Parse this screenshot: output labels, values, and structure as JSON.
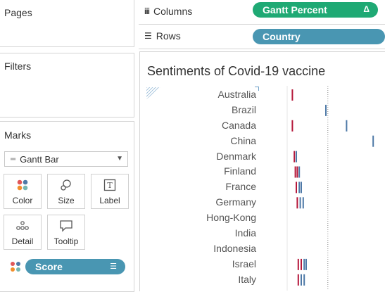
{
  "cards": {
    "pages": "Pages",
    "filters": "Filters",
    "marks": "Marks"
  },
  "shelves": {
    "columns_label": "Columns",
    "columns_pill": "Gantt Percent",
    "columns_pill_icon": "Δ",
    "rows_label": "Rows",
    "rows_pill": "Country"
  },
  "marks": {
    "mark_type": "Gantt Bar",
    "buttons": [
      "Color",
      "Size",
      "Label",
      "Detail",
      "Tooltip"
    ],
    "field_pill": "Score"
  },
  "colors": {
    "green_pill": "#1fa974",
    "blue_pill": "#4996b2",
    "mark_red": "#b5173a",
    "mark_blue": "#4e79a7"
  },
  "viz": {
    "title": "Sentiments of Covid-19 vaccine",
    "countries": [
      "Australia",
      "Brazil",
      "Canada",
      "China",
      "Denmark",
      "Finland",
      "France",
      "Germany",
      "Hong-Kong",
      "India",
      "Indonesia",
      "Israel",
      "Italy"
    ]
  },
  "chart_data": {
    "type": "gantt",
    "categories": [
      "Australia",
      "Brazil",
      "Canada",
      "China",
      "Denmark",
      "Finland",
      "France",
      "Germany",
      "Hong-Kong",
      "India",
      "Indonesia",
      "Israel",
      "Italy"
    ],
    "xlim": [
      0,
      1
    ],
    "marks": [
      [
        {
          "x": 0.06,
          "c": "red"
        }
      ],
      [
        {
          "x": 0.4,
          "c": "blue"
        }
      ],
      [
        {
          "x": 0.06,
          "c": "red"
        },
        {
          "x": 0.61,
          "c": "blue"
        }
      ],
      [
        {
          "x": 0.88,
          "c": "blue"
        }
      ],
      [
        {
          "x": 0.08,
          "c": "red"
        },
        {
          "x": 0.1,
          "c": "blue"
        }
      ],
      [
        {
          "x": 0.09,
          "c": "red"
        },
        {
          "x": 0.11,
          "c": "red"
        },
        {
          "x": 0.13,
          "c": "blue"
        }
      ],
      [
        {
          "x": 0.1,
          "c": "red"
        },
        {
          "x": 0.13,
          "c": "blue"
        },
        {
          "x": 0.15,
          "c": "blue"
        }
      ],
      [
        {
          "x": 0.11,
          "c": "red"
        },
        {
          "x": 0.14,
          "c": "blue"
        },
        {
          "x": 0.17,
          "c": "blue"
        }
      ],
      [],
      [],
      [],
      [
        {
          "x": 0.12,
          "c": "red"
        },
        {
          "x": 0.15,
          "c": "red"
        },
        {
          "x": 0.18,
          "c": "blue"
        },
        {
          "x": 0.2,
          "c": "blue"
        }
      ],
      [
        {
          "x": 0.12,
          "c": "red"
        },
        {
          "x": 0.15,
          "c": "blue"
        },
        {
          "x": 0.18,
          "c": "blue"
        }
      ]
    ]
  }
}
